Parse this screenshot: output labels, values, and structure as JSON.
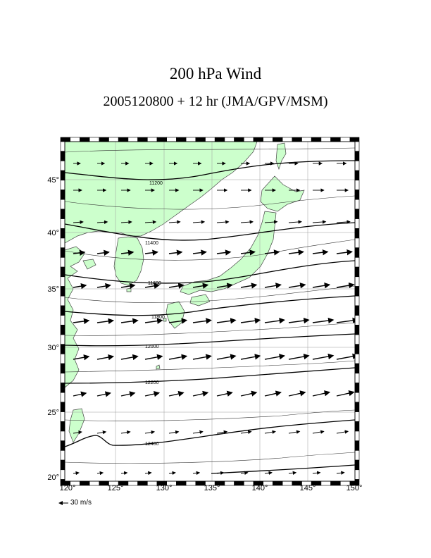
{
  "title": "200 hPa Wind",
  "subtitle": "2005120800 + 12 hr (JMA/GPV/MSM)",
  "longitude_labels": [
    "120°",
    "125°",
    "130°",
    "135°",
    "140°",
    "145°",
    "150°"
  ],
  "latitude_labels": [
    "20°",
    "25°",
    "30°",
    "35°",
    "40°",
    "45°"
  ],
  "contour_labels": [
    "11200",
    "11400",
    "11600",
    "11800",
    "12000",
    "12200",
    "12400"
  ],
  "scale_arrow_label": "30 m/s",
  "colors": {
    "land": "#ccffcc",
    "coast": "#555555",
    "contour": "#000000",
    "grid": "#999999"
  }
}
